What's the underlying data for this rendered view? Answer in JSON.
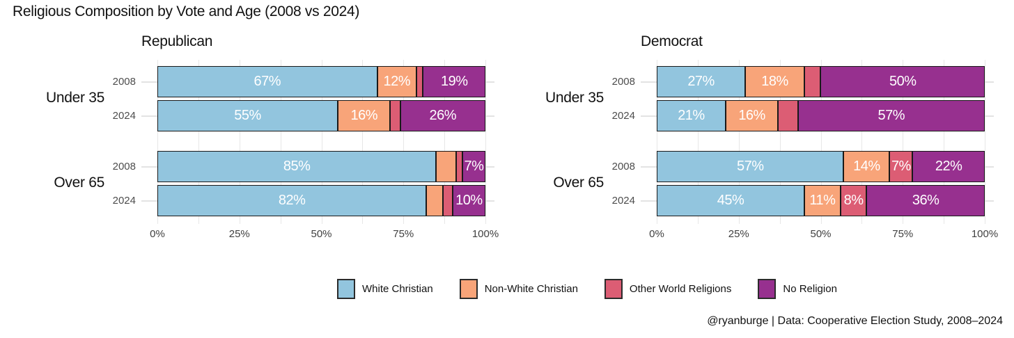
{
  "title": "Religious Composition by Vote and Age (2008 vs 2024)",
  "footer": "@ryanburge | Data: Cooperative Election Study, 2008–2024",
  "colors": {
    "white_christian": "#92C5DE",
    "non_white_christian": "#F8A479",
    "other_world_religions": "#DC5D74",
    "no_religion": "#97308F",
    "bar_border": "#191919",
    "grid": "#e7e7e7",
    "background": "#ffffff"
  },
  "legend": [
    {
      "label": "White Christian",
      "color_key": "white_christian"
    },
    {
      "label": "Non-White Christian",
      "color_key": "non_white_christian"
    },
    {
      "label": "Other World Religions",
      "color_key": "other_world_religions"
    },
    {
      "label": "No Religion",
      "color_key": "no_religion"
    }
  ],
  "chart_data": {
    "type": "bar",
    "variant": "horizontal_stacked_percent",
    "title": "Religious Composition by Vote and Age (2008 vs 2024)",
    "series_names": [
      "White Christian",
      "Non-White Christian",
      "Other World Religions",
      "No Religion"
    ],
    "series_color_keys": [
      "white_christian",
      "non_white_christian",
      "other_world_religions",
      "no_religion"
    ],
    "x_ticks": [
      "0%",
      "25%",
      "50%",
      "75%",
      "100%"
    ],
    "xlim": [
      0,
      100
    ],
    "grid": "on",
    "legend_position": "bottom",
    "label_threshold": 7,
    "panels": [
      {
        "title": "Republican",
        "groups": [
          {
            "label": "Under 35",
            "rows": [
              {
                "year": "2008",
                "values": [
                  67,
                  12,
                  2,
                  19
                ]
              },
              {
                "year": "2024",
                "values": [
                  55,
                  16,
                  3,
                  26
                ]
              }
            ]
          },
          {
            "label": "Over 65",
            "rows": [
              {
                "year": "2008",
                "values": [
                  85,
                  6,
                  2,
                  7
                ]
              },
              {
                "year": "2024",
                "values": [
                  82,
                  5,
                  3,
                  10
                ]
              }
            ]
          }
        ]
      },
      {
        "title": "Democrat",
        "groups": [
          {
            "label": "Under 35",
            "rows": [
              {
                "year": "2008",
                "values": [
                  27,
                  18,
                  5,
                  50
                ]
              },
              {
                "year": "2024",
                "values": [
                  21,
                  16,
                  6,
                  57
                ]
              }
            ]
          },
          {
            "label": "Over 65",
            "rows": [
              {
                "year": "2008",
                "values": [
                  57,
                  14,
                  7,
                  22
                ]
              },
              {
                "year": "2024",
                "values": [
                  45,
                  11,
                  8,
                  36
                ]
              }
            ]
          }
        ]
      }
    ]
  }
}
